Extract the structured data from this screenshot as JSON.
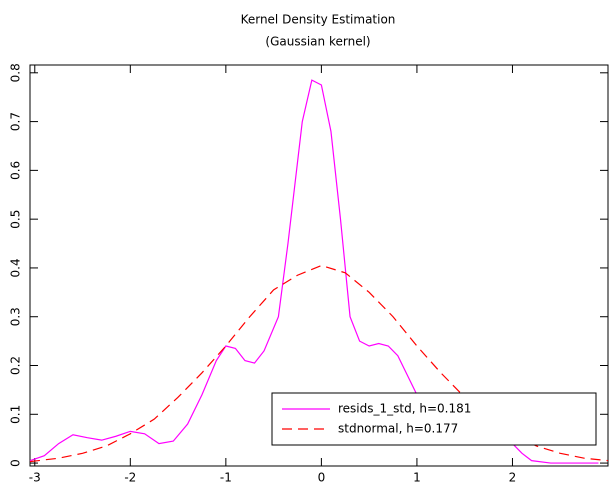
{
  "chart_data": {
    "type": "line",
    "title": "Kernel Density Estimation",
    "subtitle": "(Gaussian kernel)",
    "xlim": [
      -3.05,
      3.0
    ],
    "ylim": [
      -0.006,
      0.816
    ],
    "xticks": [
      -3,
      -2,
      -1,
      0,
      1,
      2
    ],
    "yticks": [
      0,
      0.1,
      0.2,
      0.3,
      0.4,
      0.5,
      0.6,
      0.7,
      0.8
    ],
    "legend": "lower right",
    "series": [
      {
        "name": "resids_1_std, h=0.181",
        "color": "#ff00ff",
        "dash": false,
        "x": [
          -3.05,
          -2.9,
          -2.75,
          -2.6,
          -2.45,
          -2.3,
          -2.15,
          -2.0,
          -1.85,
          -1.7,
          -1.55,
          -1.4,
          -1.25,
          -1.1,
          -1.0,
          -0.9,
          -0.8,
          -0.7,
          -0.6,
          -0.45,
          -0.35,
          -0.2,
          -0.1,
          0.0,
          0.1,
          0.2,
          0.3,
          0.4,
          0.5,
          0.6,
          0.7,
          0.8,
          0.9,
          1.0,
          1.2,
          1.4,
          1.6,
          1.8,
          2.0,
          2.1,
          2.2,
          2.4,
          2.9
        ],
        "values": [
          0.005,
          0.015,
          0.04,
          0.058,
          0.052,
          0.047,
          0.055,
          0.065,
          0.06,
          0.04,
          0.045,
          0.08,
          0.14,
          0.21,
          0.24,
          0.235,
          0.21,
          0.205,
          0.23,
          0.3,
          0.45,
          0.7,
          0.785,
          0.775,
          0.68,
          0.5,
          0.3,
          0.25,
          0.24,
          0.245,
          0.24,
          0.22,
          0.18,
          0.14,
          0.1,
          0.08,
          0.07,
          0.06,
          0.04,
          0.02,
          0.005,
          0.0,
          0.0
        ]
      },
      {
        "name": "stdnormal, h=0.177",
        "color": "#ff0000",
        "dash": true,
        "x": [
          -3.05,
          -2.75,
          -2.5,
          -2.25,
          -2.0,
          -1.75,
          -1.5,
          -1.25,
          -1.0,
          -0.75,
          -0.5,
          -0.25,
          0.0,
          0.25,
          0.5,
          0.75,
          1.0,
          1.25,
          1.5,
          1.75,
          2.0,
          2.25,
          2.5,
          2.75,
          3.0
        ],
        "values": [
          0.003,
          0.01,
          0.02,
          0.035,
          0.06,
          0.09,
          0.135,
          0.185,
          0.24,
          0.3,
          0.355,
          0.385,
          0.405,
          0.39,
          0.35,
          0.3,
          0.24,
          0.185,
          0.135,
          0.09,
          0.06,
          0.035,
          0.02,
          0.01,
          0.005
        ]
      }
    ]
  }
}
